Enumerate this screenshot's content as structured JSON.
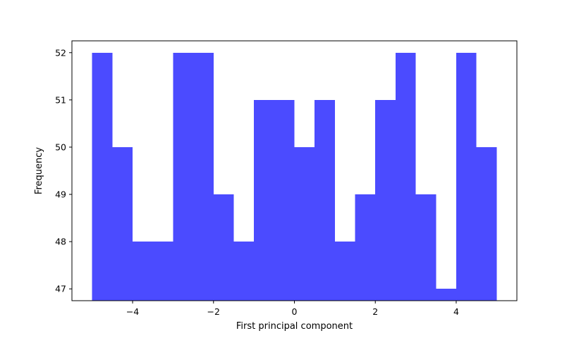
{
  "chart_data": {
    "type": "bar",
    "title": "",
    "xlabel": "First principal component",
    "ylabel": "Frequency",
    "bin_edges": [
      -5.0,
      -4.5,
      -4.0,
      -3.5,
      -3.0,
      -2.5,
      -2.0,
      -1.5,
      -1.0,
      -0.5,
      0.0,
      0.5,
      1.0,
      1.5,
      2.0,
      2.5,
      3.0,
      3.5,
      4.0,
      4.5,
      5.0
    ],
    "values": [
      52,
      50,
      48,
      48,
      52,
      52,
      49,
      48,
      51,
      51,
      50,
      51,
      48,
      49,
      51,
      52,
      49,
      47,
      52,
      50
    ],
    "xlim": [
      -5.5,
      5.5
    ],
    "ylim": [
      46.75,
      52.25
    ],
    "xticks": [
      -4,
      -2,
      0,
      2,
      4
    ],
    "xtick_labels": [
      "−4",
      "−2",
      "0",
      "2",
      "4"
    ],
    "yticks": [
      47,
      48,
      49,
      50,
      51,
      52
    ],
    "ytick_labels": [
      "47",
      "48",
      "49",
      "50",
      "51",
      "52"
    ],
    "bar_color": "#4b4bff",
    "grid": false,
    "legend": "none"
  }
}
